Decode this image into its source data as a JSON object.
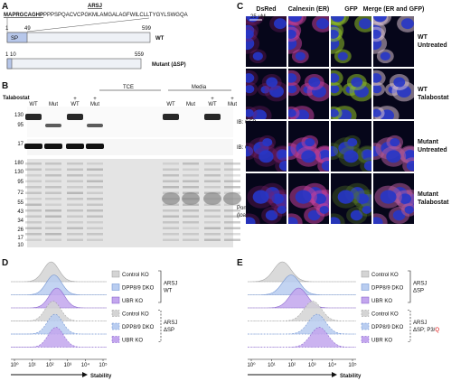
{
  "panel_a": {
    "letter": "A",
    "gene": "ARSJ",
    "sequence_signal": "MAPRGCAGHP",
    "sequence_rest": "PPPSPQACVCPGKMLAMGALAGFWILCLLTYGYLSWGQA",
    "wt": {
      "start": "1",
      "sp_end": "49",
      "end": "599",
      "sp_label": "SP",
      "label": "WT"
    },
    "mutant": {
      "start_label": "1 10",
      "end": "559",
      "label": "Mutant (ΔSP)"
    }
  },
  "panel_b": {
    "letter": "B",
    "groups": [
      "TCE",
      "Media"
    ],
    "treatment": "Talabostat",
    "plus_marks": [
      "+",
      "+",
      "+",
      "+"
    ],
    "lanes": [
      "WT",
      "Mut",
      "WT",
      "Mut",
      "WT",
      "Mut",
      "WT",
      "Mut"
    ],
    "gfp_markers": [
      "130",
      "95"
    ],
    "gfp_label": "IB: GFP",
    "cox_markers": [
      "17"
    ],
    "cox_label": "IB: COX-IV",
    "ponceau_markers": [
      "180",
      "130",
      "95",
      "72",
      "55",
      "43",
      "34",
      "26",
      "17",
      "10"
    ],
    "ponceau_label": [
      "Ponceau",
      "(loading)"
    ]
  },
  "panel_c": {
    "letter": "C",
    "columns": [
      "DsRed",
      "Calnexin (ER)",
      "GFP",
      "Merge (ER and GFP)"
    ],
    "scale_bar": "25 μM",
    "rows": [
      [
        "WT",
        "Untreated"
      ],
      [
        "WT",
        "Talabostat"
      ],
      [
        "Mutant",
        "Untreated"
      ],
      [
        "Mutant",
        "Talabostat"
      ]
    ]
  },
  "panel_d": {
    "letter": "D",
    "legend": [
      "Control KO",
      "DPP8/9 DKO",
      "UBR KO",
      "Control KO",
      "DPP8/9 DKO",
      "UBR KO"
    ],
    "groups": [
      [
        "ARSJ",
        "WT"
      ],
      [
        "ARSJ",
        "ΔSP"
      ]
    ],
    "x_ticks": [
      "10⁰",
      "10¹",
      "10²",
      "10³",
      "10⁴",
      "10⁵"
    ],
    "x_label": "Stability"
  },
  "panel_e": {
    "letter": "E",
    "legend": [
      "Control KO",
      "DPP8/9 DKO",
      "UBR KO",
      "Control KO",
      "DPP8/9 DKO",
      "UBR KO"
    ],
    "groups": [
      [
        "ARSJ",
        "ΔSP"
      ],
      [
        "ARSJ",
        "ΔSP; P3/",
        "Q"
      ]
    ],
    "x_ticks": [
      "10⁰",
      "10¹",
      "10²",
      "10³",
      "10⁴",
      "10⁵"
    ],
    "x_label": "Stability"
  }
}
